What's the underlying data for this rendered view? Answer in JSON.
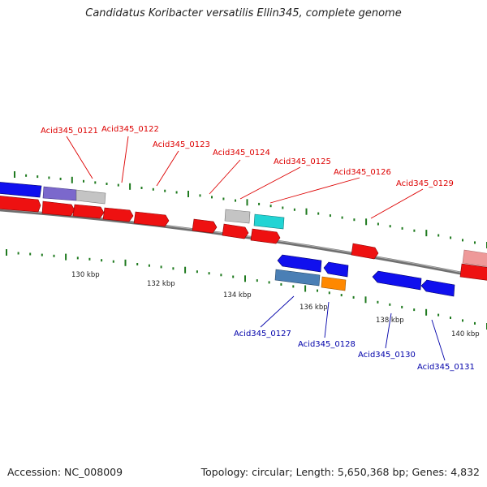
{
  "title": "Candidatus Koribacter versatilis Ellin345, complete genome",
  "accession": "Accession: NC_008009",
  "topology_summary": "Topology: circular; Length: 5,650,368 bp; Genes: 4,832",
  "colors": {
    "backbone": "#777777",
    "tick": "#1f7a1f",
    "forward_label": "#dd0000",
    "reverse_label": "#0000aa"
  },
  "scale_labels": [
    "130 kbp",
    "132 kbp",
    "134 kbp",
    "136 kbp",
    "138 kbp",
    "140 kbp"
  ],
  "forward_labels": [
    "Acid345_0121",
    "Acid345_0122",
    "Acid345_0123",
    "Acid345_0124",
    "Acid345_0125",
    "Acid345_0126",
    "Acid345_0129"
  ],
  "reverse_labels": [
    "Acid345_0127",
    "Acid345_0128",
    "Acid345_0130",
    "Acid345_0131"
  ]
}
